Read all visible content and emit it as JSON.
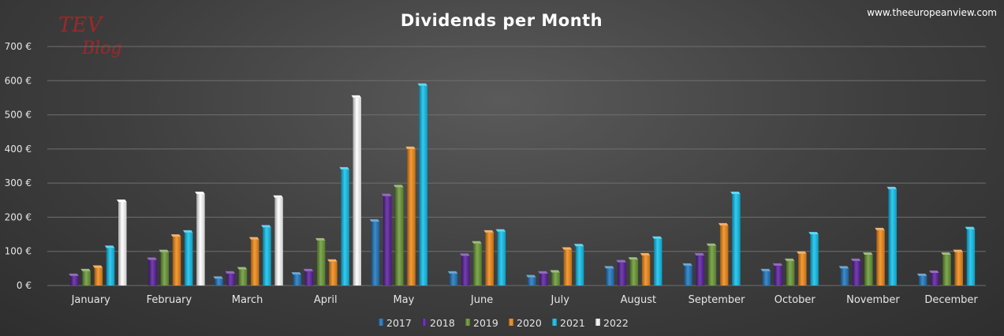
{
  "header": {
    "title": "Dividends per Month",
    "website": "www.theeuropeanview.com",
    "logo_text": [
      "TEV",
      "Blog"
    ]
  },
  "colors": {
    "2017": "#1f77c0",
    "2018": "#5a1f9e",
    "2019": "#6a9a35",
    "2020": "#f28a16",
    "2021": "#10c2ee",
    "2022": "#ffffff",
    "logo": "#a1262a"
  },
  "chart_data": {
    "type": "bar",
    "title": "Dividends per Month",
    "categories": [
      "January",
      "February",
      "March",
      "April",
      "May",
      "June",
      "July",
      "August",
      "September",
      "October",
      "November",
      "December"
    ],
    "ylim": [
      0,
      700
    ],
    "yticks": [
      0,
      100,
      200,
      300,
      400,
      500,
      600,
      700
    ],
    "ytick_labels": [
      "0 €",
      "100 €",
      "200 €",
      "300 €",
      "400 €",
      "500 €",
      "600 €",
      "700 €"
    ],
    "grid": true,
    "legend_position": "bottom",
    "series": [
      {
        "name": "2017",
        "values": [
          null,
          null,
          20,
          32,
          187,
          35,
          24,
          50,
          58,
          42,
          50,
          28
        ]
      },
      {
        "name": "2018",
        "values": [
          28,
          75,
          35,
          42,
          262,
          87,
          35,
          68,
          88,
          58,
          72,
          37
        ]
      },
      {
        "name": "2019",
        "values": [
          42,
          98,
          47,
          132,
          288,
          123,
          38,
          76,
          116,
          72,
          90,
          90
        ]
      },
      {
        "name": "2020",
        "values": [
          52,
          143,
          135,
          70,
          400,
          155,
          105,
          88,
          176,
          93,
          162,
          98
        ]
      },
      {
        "name": "2021",
        "values": [
          110,
          155,
          170,
          340,
          585,
          158,
          115,
          137,
          268,
          150,
          282,
          165
        ]
      },
      {
        "name": "2022",
        "values": [
          245,
          268,
          257,
          550,
          null,
          null,
          null,
          null,
          null,
          null,
          null,
          null
        ]
      }
    ]
  }
}
